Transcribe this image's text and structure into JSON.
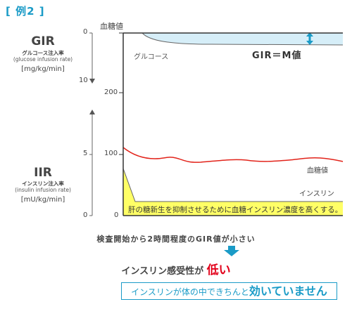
{
  "example_title": "[ 例2 ]",
  "gir_axis": {
    "title": "GIR",
    "subtitle_jp": "グルコース注入率",
    "subtitle_en": "(glucose infusion rate)",
    "unit": "[mg/kg/min]",
    "ticks": [
      "0",
      "10"
    ]
  },
  "iir_axis": {
    "title": "IIR",
    "subtitle_jp": "インスリン注入率",
    "subtitle_en": "(insulin infusion rate)",
    "unit": "[mU/kg/min]",
    "ticks": [
      "5",
      "0"
    ]
  },
  "blood_sugar_axis": {
    "title": "血糖値",
    "ticks": [
      "200",
      "100",
      "0"
    ]
  },
  "labels": {
    "glucose": "グルコース",
    "gir_equals": "GIR＝M値",
    "blood_sugar_curve": "血糖値",
    "insulin": "インスリン"
  },
  "note": "肝の糖新生を抑制させるために血糖インスリン濃度を高くする。",
  "conclusion_line1": "検査開始から2時間程度のGIR値が小さい",
  "conclusion_line2_prefix": "インスリン感受性が",
  "conclusion_line2_emphasis": "低い",
  "verdict_prefix": "インスリンが体の中できちんと",
  "verdict_emphasis": "効いていません",
  "colors": {
    "accent_blue": "#1a9bc7",
    "glucose_fill": "#d6eef8",
    "blood_sugar_red": "#e2231a",
    "insulin_fill": "#ffff66",
    "low_red": "#e2001a"
  }
}
